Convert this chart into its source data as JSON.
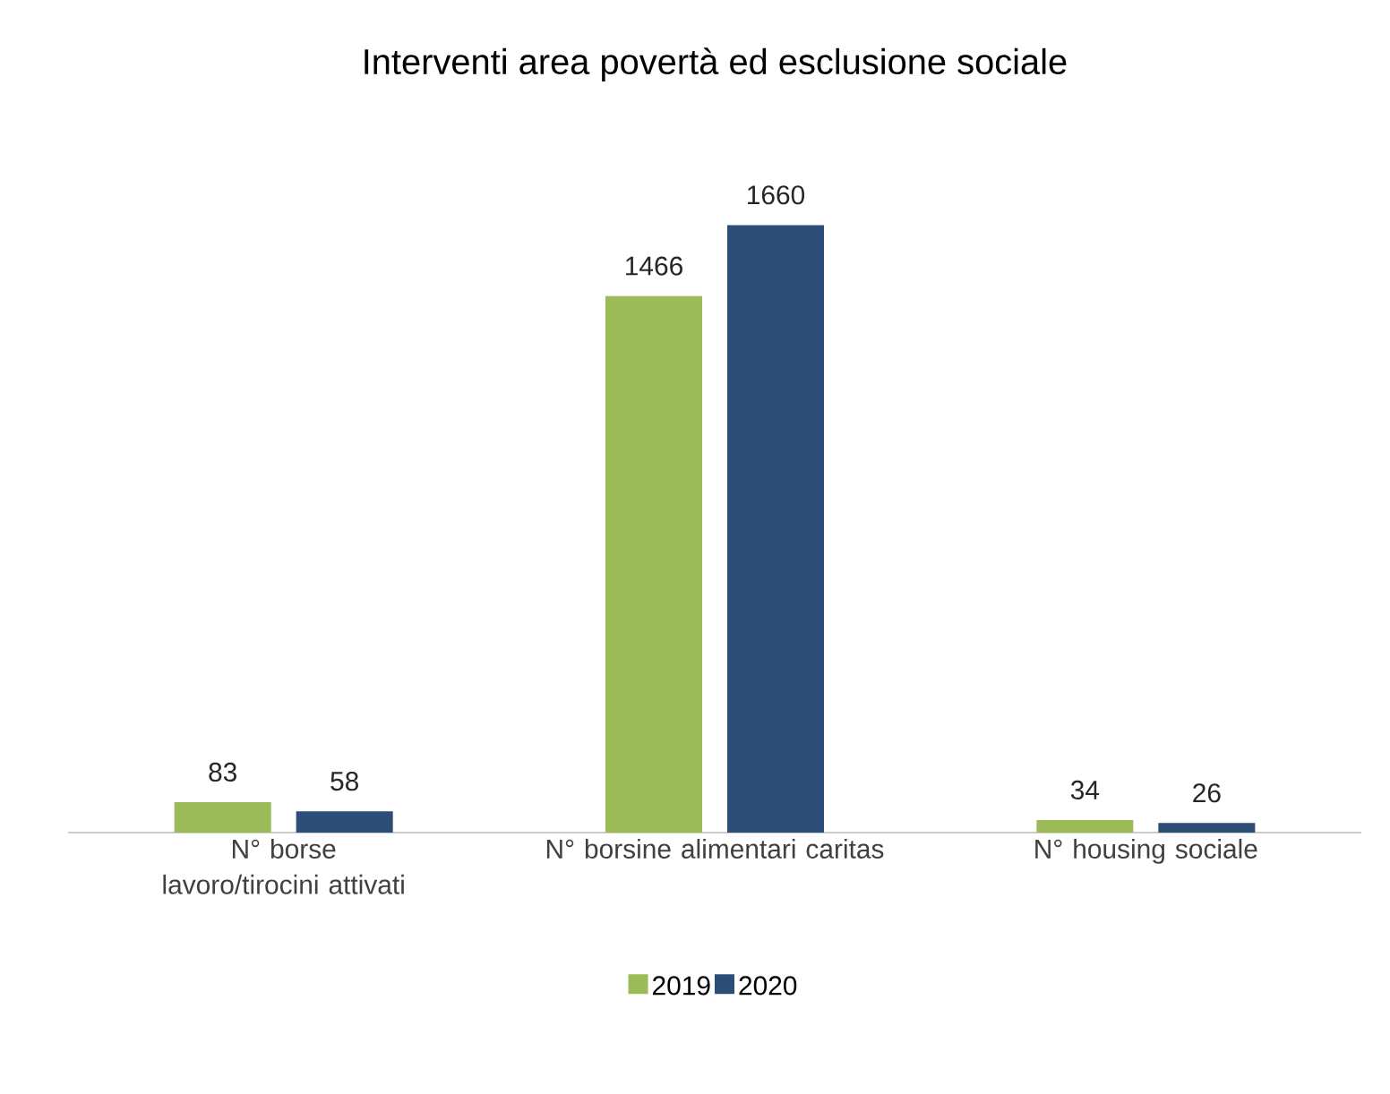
{
  "chart_data": {
    "type": "bar",
    "title": "Interventi area povertà ed esclusione sociale",
    "categories": [
      "N° borse lavoro/tirocini attivati",
      "N° borsine alimentari caritas",
      "N° housing sociale"
    ],
    "series": [
      {
        "name": "2019",
        "color": "#9bbb59",
        "values": [
          83,
          1466,
          34
        ]
      },
      {
        "name": "2020",
        "color": "#2c4d75",
        "values": [
          58,
          1660,
          26
        ]
      }
    ],
    "data_labels": true,
    "legend": "bottom"
  }
}
